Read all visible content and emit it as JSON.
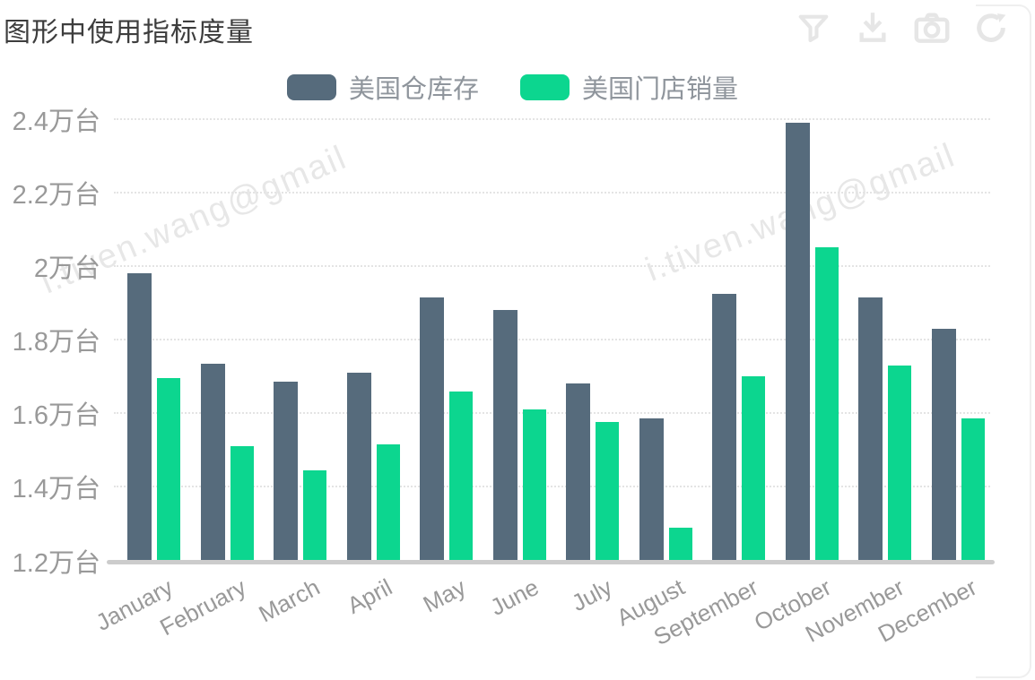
{
  "title": "图形中使用指标度量",
  "watermark": {
    "text": "i.tiven.wang@gmail"
  },
  "toolbar": {
    "color": "#e6e6e6",
    "icons": [
      {
        "name": "filter-icon"
      },
      {
        "name": "download-icon"
      },
      {
        "name": "camera-icon"
      },
      {
        "name": "refresh-icon"
      }
    ]
  },
  "legend": {
    "items": [
      {
        "key": "us-warehouse-inventory",
        "label": "美国仓库存",
        "color": "#566b7c"
      },
      {
        "key": "us-store-sales",
        "label": "美国门店销量",
        "color": "#0cd68f"
      }
    ]
  },
  "chart_data": {
    "type": "bar",
    "title": "图形中使用指标度量",
    "categories": [
      "January",
      "February",
      "March",
      "April",
      "May",
      "June",
      "July",
      "August",
      "September",
      "October",
      "November",
      "December"
    ],
    "series": [
      {
        "key": "us-warehouse-inventory",
        "name": "美国仓库存",
        "color": "#566b7c",
        "values": [
          1.98,
          1.735,
          1.685,
          1.71,
          1.915,
          1.88,
          1.68,
          1.585,
          1.925,
          2.39,
          1.915,
          1.83
        ]
      },
      {
        "key": "us-store-sales",
        "name": "美国门店销量",
        "color": "#0cd68f",
        "values": [
          1.695,
          1.51,
          1.445,
          1.515,
          1.66,
          1.61,
          1.575,
          1.29,
          1.7,
          2.05,
          1.73,
          1.585
        ]
      }
    ],
    "unit": "万台",
    "y_ticks": [
      {
        "value": 1.2,
        "label": "1.2万台"
      },
      {
        "value": 1.4,
        "label": "1.4万台"
      },
      {
        "value": 1.6,
        "label": "1.6万台"
      },
      {
        "value": 1.8,
        "label": "1.8万台"
      },
      {
        "value": 2.0,
        "label": "2万台"
      },
      {
        "value": 2.2,
        "label": "2.2万台"
      },
      {
        "value": 2.4,
        "label": "2.4万台"
      }
    ],
    "ylim": [
      1.2,
      2.4
    ],
    "grid": "horizontal-dotted",
    "legend_position": "top-center",
    "xlabel_rotation": -28
  }
}
